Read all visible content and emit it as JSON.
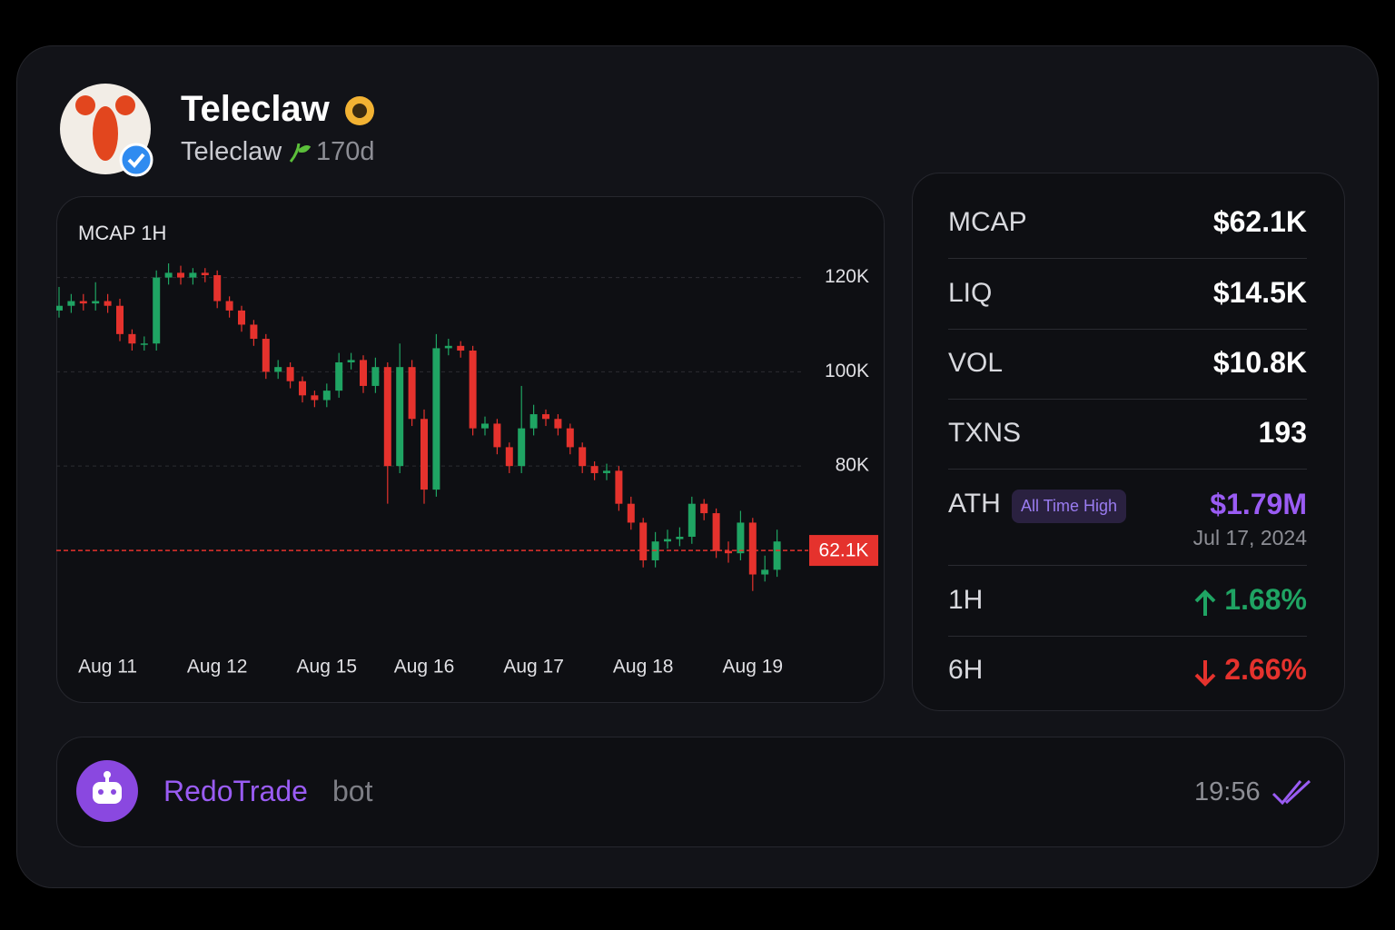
{
  "header": {
    "title": "Teleclaw",
    "subtitle": "Teleclaw",
    "age": "170d"
  },
  "chart_data": {
    "type": "candlestick",
    "title": "MCAP 1H",
    "up_color": "#1fa463",
    "down_color": "#e5322d",
    "grid": true,
    "ylim": [
      44000,
      123000
    ],
    "yticks": [
      {
        "value": 80000,
        "label": "80K"
      },
      {
        "value": 100000,
        "label": "100K"
      },
      {
        "value": 120000,
        "label": "120K"
      }
    ],
    "xlim": [
      -0.5,
      62
    ],
    "xticks": [
      {
        "value": 4,
        "label": "Aug 11"
      },
      {
        "value": 13,
        "label": "Aug 12"
      },
      {
        "value": 22,
        "label": "Aug 15"
      },
      {
        "value": 30,
        "label": "Aug 16"
      },
      {
        "value": 39,
        "label": "Aug 17"
      },
      {
        "value": 48,
        "label": "Aug 18"
      },
      {
        "value": 57,
        "label": "Aug 19"
      }
    ],
    "open": [
      113000,
      114000,
      115000,
      114500,
      115000,
      114000,
      108000,
      106000,
      106000,
      120000,
      121000,
      120000,
      121000,
      120500,
      115000,
      113000,
      110000,
      107000,
      100000,
      101000,
      98000,
      95000,
      94000,
      96000,
      102000,
      102500,
      97000,
      101000,
      80000,
      101000,
      90000,
      75000,
      105000,
      105500,
      104500,
      88000,
      89000,
      84000,
      80000,
      88000,
      91000,
      90000,
      88000,
      84000,
      80000,
      78500,
      79000,
      72000,
      68000,
      60000,
      64000,
      64500,
      65000,
      72000,
      70000,
      62000,
      61500,
      68000,
      57000,
      58000
    ],
    "high": [
      118000,
      116500,
      116500,
      119000,
      116500,
      115500,
      109000,
      107500,
      121500,
      123000,
      122500,
      122000,
      122000,
      121500,
      116000,
      114000,
      111000,
      108000,
      102500,
      102000,
      99000,
      96000,
      97500,
      104000,
      104000,
      103500,
      103000,
      102000,
      106000,
      102500,
      92000,
      108000,
      107000,
      106500,
      105500,
      90500,
      90000,
      85000,
      97000,
      93000,
      92000,
      91000,
      89000,
      85000,
      81000,
      80500,
      80000,
      73500,
      69000,
      66000,
      66500,
      67000,
      73500,
      73000,
      71000,
      64000,
      70500,
      69000,
      61000,
      66500
    ],
    "low": [
      111500,
      112500,
      113000,
      113000,
      112500,
      106500,
      104500,
      104500,
      104500,
      118500,
      118500,
      118500,
      119000,
      113500,
      111500,
      108500,
      105500,
      98500,
      98500,
      96500,
      93500,
      92500,
      92500,
      94500,
      100500,
      95500,
      95500,
      72000,
      78500,
      88500,
      72000,
      73500,
      103500,
      103000,
      86500,
      86500,
      82500,
      78500,
      78500,
      86500,
      88500,
      86500,
      82500,
      78500,
      77000,
      77000,
      70500,
      66500,
      58500,
      58500,
      62500,
      63000,
      63500,
      68500,
      60500,
      59500,
      60000,
      53500,
      55500,
      56500
    ],
    "close": [
      114000,
      115000,
      114500,
      115000,
      114000,
      108000,
      106000,
      106000,
      120000,
      121000,
      120000,
      121000,
      120500,
      115000,
      113000,
      110000,
      107000,
      100000,
      101000,
      98000,
      95000,
      94000,
      96000,
      102000,
      102500,
      97000,
      101000,
      80000,
      101000,
      90000,
      75000,
      105000,
      105500,
      104500,
      88000,
      89000,
      84000,
      80000,
      88000,
      91000,
      90000,
      88000,
      84000,
      80000,
      78500,
      79000,
      72000,
      68000,
      60000,
      64000,
      64500,
      65000,
      72000,
      70000,
      62000,
      61500,
      68000,
      57000,
      58000,
      64000
    ],
    "current": {
      "value": 62100,
      "label": "62.1K"
    }
  },
  "stats": [
    {
      "label": "MCAP",
      "value": "$62.1K"
    },
    {
      "label": "LIQ",
      "value": "$14.5K"
    },
    {
      "label": "VOL",
      "value": "$10.8K"
    },
    {
      "label": "TXNS",
      "value": "193"
    }
  ],
  "ath": {
    "label": "ATH",
    "badge": "All Time High",
    "value": "$1.79M",
    "date": "Jul 17, 2024"
  },
  "changes": [
    {
      "label": "1H",
      "value": "1.68%",
      "trend": "up"
    },
    {
      "label": "6H",
      "value": "2.66%",
      "trend": "down"
    }
  ],
  "message": {
    "sender": "RedoTrade",
    "tag": "bot",
    "time": "19:56"
  }
}
